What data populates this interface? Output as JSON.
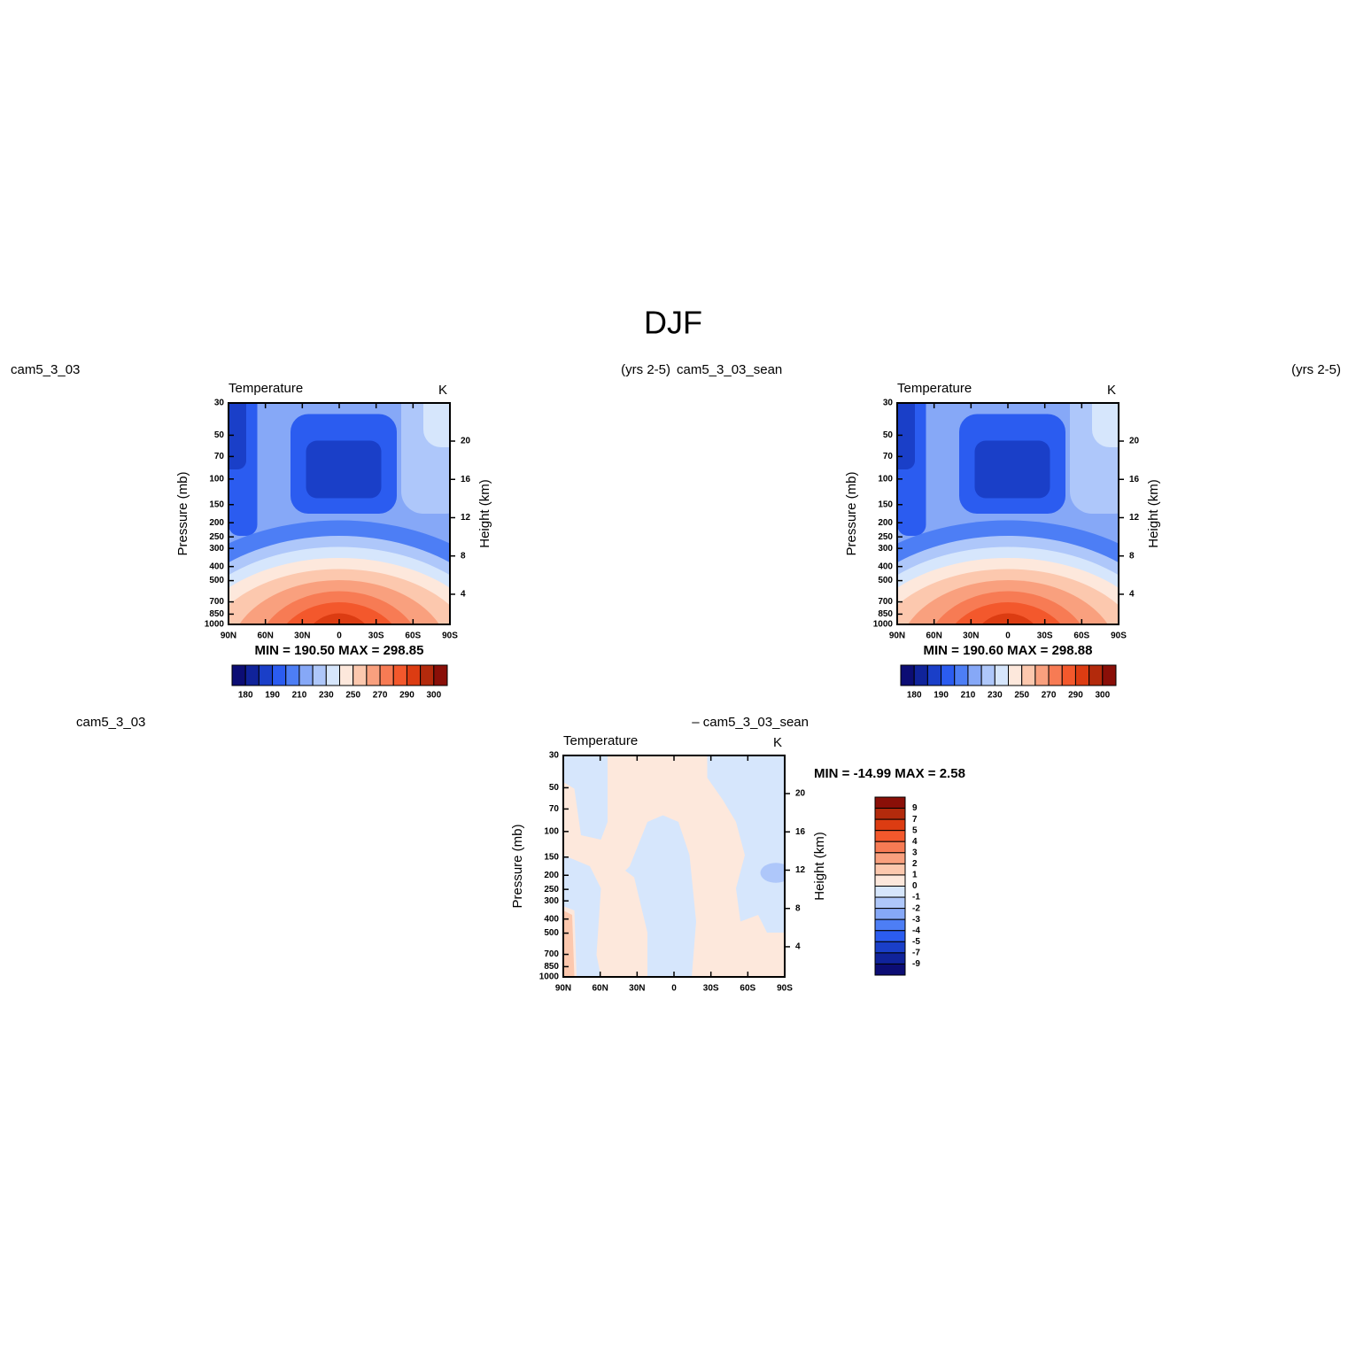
{
  "title": "DJF",
  "chart_data": [
    {
      "type": "contour",
      "title": "Temperature",
      "units": "K",
      "left_string": "cam5_3_03",
      "right_string": "(yrs 2-5)",
      "ylabel": "Pressure (mb)",
      "y2label": "Height (km)",
      "xlim": [
        90,
        -90
      ],
      "xticks": [
        {
          "value": 90,
          "label": "90N"
        },
        {
          "value": 60,
          "label": "60N"
        },
        {
          "value": 30,
          "label": "30N"
        },
        0,
        {
          "value": -30,
          "label": "30S"
        },
        {
          "value": -60,
          "label": "60S"
        },
        {
          "value": -90,
          "label": "90S"
        }
      ],
      "ylim": [
        1000,
        30
      ],
      "log_y": true,
      "yticks": [
        30,
        50,
        70,
        100,
        150,
        200,
        250,
        300,
        400,
        500,
        700,
        850,
        1000
      ],
      "y2lim": [
        0.85,
        23.98
      ],
      "y2ticks": [
        4,
        8,
        12,
        16,
        20
      ],
      "min_max": "MIN = 190.50   MAX = 298.85",
      "colorbar": {
        "orientation": "horizontal",
        "colors": [
          "#0c0d74",
          "#10239a",
          "#1a3fc8",
          "#2b5cf0",
          "#4d7ef5",
          "#86a8f7",
          "#aec7fa",
          "#d6e6fc",
          "#fde8dc",
          "#fcc8ae",
          "#f9a07e",
          "#f77b54",
          "#f3582c",
          "#dc3c12",
          "#b32a0c",
          "#8a0f08"
        ],
        "labels": [
          180,
          190,
          210,
          230,
          250,
          270,
          290,
          300
        ]
      }
    },
    {
      "type": "contour",
      "title": "Temperature",
      "units": "K",
      "left_string": "cam5_3_03_sean",
      "right_string": "(yrs 2-5)",
      "ylabel": "Pressure (mb)",
      "y2label": "Height (km)",
      "xlim": [
        90,
        -90
      ],
      "xticks": [
        {
          "value": 90,
          "label": "90N"
        },
        {
          "value": 60,
          "label": "60N"
        },
        {
          "value": 30,
          "label": "30N"
        },
        0,
        {
          "value": -30,
          "label": "30S"
        },
        {
          "value": -60,
          "label": "60S"
        },
        {
          "value": -90,
          "label": "90S"
        }
      ],
      "ylim": [
        1000,
        30
      ],
      "log_y": true,
      "yticks": [
        30,
        50,
        70,
        100,
        150,
        200,
        250,
        300,
        400,
        500,
        700,
        850,
        1000
      ],
      "y2lim": [
        0.85,
        23.98
      ],
      "y2ticks": [
        4,
        8,
        12,
        16,
        20
      ],
      "min_max": "MIN = 190.60   MAX = 298.88",
      "colorbar": {
        "orientation": "horizontal",
        "colors": [
          "#0c0d74",
          "#10239a",
          "#1a3fc8",
          "#2b5cf0",
          "#4d7ef5",
          "#86a8f7",
          "#aec7fa",
          "#d6e6fc",
          "#fde8dc",
          "#fcc8ae",
          "#f9a07e",
          "#f77b54",
          "#f3582c",
          "#dc3c12",
          "#b32a0c",
          "#8a0f08"
        ],
        "labels": [
          180,
          190,
          210,
          230,
          250,
          270,
          290,
          300
        ]
      }
    },
    {
      "type": "contour",
      "title": "Temperature",
      "units": "K",
      "left_string": "cam5_3_03",
      "right_string": "– cam5_3_03_sean",
      "ylabel": "Pressure (mb)",
      "y2label": "Height (km)",
      "xlim": [
        90,
        -90
      ],
      "xticks": [
        {
          "value": 90,
          "label": "90N"
        },
        {
          "value": 60,
          "label": "60N"
        },
        {
          "value": 30,
          "label": "30N"
        },
        0,
        {
          "value": -30,
          "label": "30S"
        },
        {
          "value": -60,
          "label": "60S"
        },
        {
          "value": -90,
          "label": "90S"
        }
      ],
      "ylim": [
        1000,
        30
      ],
      "log_y": true,
      "yticks": [
        30,
        50,
        70,
        100,
        150,
        200,
        250,
        300,
        400,
        500,
        700,
        850,
        1000
      ],
      "y2lim": [
        0.85,
        23.98
      ],
      "y2ticks": [
        4,
        8,
        12,
        16,
        20
      ],
      "min_max": "MIN = -14.99   MAX =    2.58",
      "colorbar": {
        "orientation": "vertical",
        "colors": [
          "#8a0f08",
          "#b32a0c",
          "#dc3c12",
          "#f3582c",
          "#f77b54",
          "#f9a07e",
          "#fcc8ae",
          "#fde8dc",
          "#d6e6fc",
          "#aec7fa",
          "#86a8f7",
          "#4d7ef5",
          "#2b5cf0",
          "#1a3fc8",
          "#10239a",
          "#0c0d74"
        ],
        "labels": [
          9,
          7,
          5,
          4,
          3,
          2,
          1,
          0,
          -1,
          -2,
          -3,
          -4,
          -5,
          -7,
          -9
        ]
      }
    }
  ]
}
